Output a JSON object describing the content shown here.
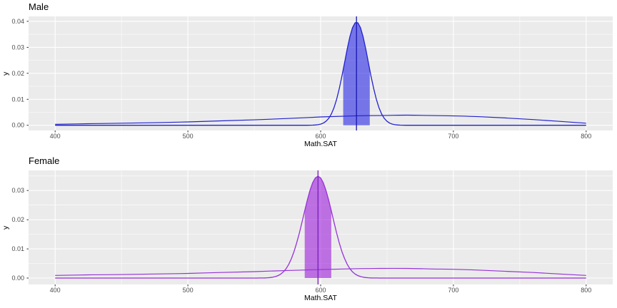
{
  "figure": {
    "background": "#ffffff",
    "panel_background": "#ebebeb",
    "grid_color": "#ffffff",
    "tick_mark_color": "#333333",
    "tick_label_color": "#4d4d4d",
    "text_color": "#000000"
  },
  "chart_data": [
    {
      "type": "area",
      "title": "Male",
      "xlabel": "Math.SAT",
      "ylabel": "y",
      "xlim": [
        380,
        820
      ],
      "ylim": [
        -0.002,
        0.0419
      ],
      "x_ticks": [
        400,
        500,
        600,
        700,
        800
      ],
      "x_tick_labels": [
        "400",
        "500",
        "600",
        "700",
        "800"
      ],
      "x_minor_ticks": [
        450,
        550,
        650,
        750
      ],
      "y_ticks": [
        0,
        0.01,
        0.02,
        0.03,
        0.04
      ],
      "y_tick_labels": [
        "0.00",
        "0.01",
        "0.02",
        "0.03",
        "0.04"
      ],
      "y_minor_ticks": [
        0.005,
        0.015,
        0.025,
        0.035
      ],
      "line_color": "#2222cf",
      "vline_color": "#1616ad",
      "fill_color": "rgba(20,20,230,0.55)",
      "curve_domain": [
        400,
        800
      ],
      "narrow_curve": {
        "mean": 627,
        "sd": 9,
        "peak": 0.0397
      },
      "credible_interval": [
        617,
        637
      ],
      "vline_x": 627,
      "wide_curve": [
        [
          400,
          0.0004
        ],
        [
          425,
          0.0006
        ],
        [
          450,
          0.0008
        ],
        [
          475,
          0.001
        ],
        [
          500,
          0.0013
        ],
        [
          525,
          0.0017
        ],
        [
          550,
          0.0021
        ],
        [
          575,
          0.0026
        ],
        [
          600,
          0.0032
        ],
        [
          625,
          0.0036
        ],
        [
          650,
          0.0038
        ],
        [
          665,
          0.0039
        ],
        [
          680,
          0.0038
        ],
        [
          700,
          0.0036
        ],
        [
          720,
          0.0033
        ],
        [
          740,
          0.0028
        ],
        [
          760,
          0.0022
        ],
        [
          780,
          0.0015
        ],
        [
          800,
          0.0008
        ]
      ]
    },
    {
      "type": "area",
      "title": "Female",
      "xlabel": "Math.SAT",
      "ylabel": "y",
      "xlim": [
        380,
        820
      ],
      "ylim": [
        -0.0022,
        0.0369
      ],
      "x_ticks": [
        400,
        500,
        600,
        700,
        800
      ],
      "x_tick_labels": [
        "400",
        "500",
        "600",
        "700",
        "800"
      ],
      "x_minor_ticks": [
        450,
        550,
        650,
        750
      ],
      "y_ticks": [
        0,
        0.01,
        0.02,
        0.03
      ],
      "y_tick_labels": [
        "0.00",
        "0.01",
        "0.02",
        "0.03"
      ],
      "y_minor_ticks": [
        0.005,
        0.015,
        0.025,
        0.035
      ],
      "line_color": "#9632d7",
      "vline_color": "#7a1fc0",
      "fill_color": "rgba(150,10,215,0.55)",
      "curve_domain": [
        400,
        800
      ],
      "narrow_curve": {
        "mean": 598,
        "sd": 11,
        "peak": 0.0349
      },
      "credible_interval": [
        588,
        608
      ],
      "vline_x": 598,
      "wide_curve": [
        [
          400,
          0.0009
        ],
        [
          425,
          0.0011
        ],
        [
          450,
          0.0012
        ],
        [
          475,
          0.0014
        ],
        [
          500,
          0.0016
        ],
        [
          525,
          0.0019
        ],
        [
          550,
          0.0022
        ],
        [
          575,
          0.0026
        ],
        [
          600,
          0.0029
        ],
        [
          625,
          0.0032
        ],
        [
          645,
          0.0033
        ],
        [
          665,
          0.0033
        ],
        [
          685,
          0.0031
        ],
        [
          700,
          0.003
        ],
        [
          720,
          0.0027
        ],
        [
          740,
          0.0023
        ],
        [
          760,
          0.0019
        ],
        [
          780,
          0.0014
        ],
        [
          800,
          0.0009
        ]
      ]
    }
  ]
}
